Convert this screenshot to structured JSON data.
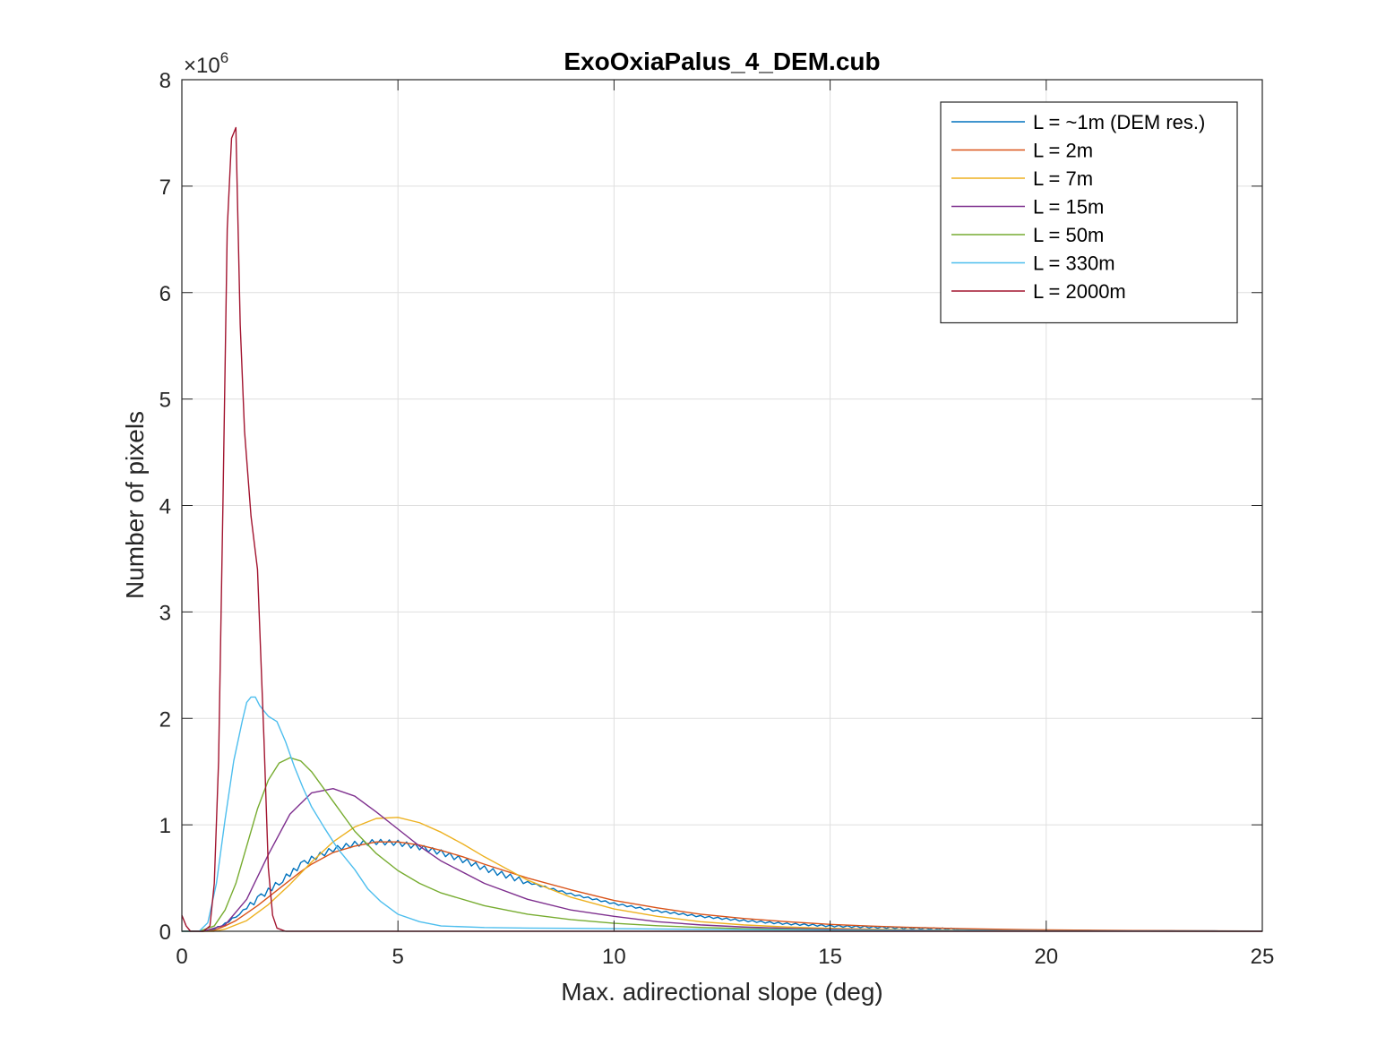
{
  "chart_data": {
    "type": "line",
    "title": "ExoOxiaPalus_4_DEM.cub",
    "xlabel": "Max. adirectional slope (deg)",
    "ylabel": "Number of pixels",
    "y_exponent_label": "×10",
    "y_exponent_power": "6",
    "xlim": [
      0,
      25
    ],
    "ylim": [
      0,
      8
    ],
    "y_scale_factor": 1000000,
    "xticks": [
      0,
      5,
      10,
      15,
      20,
      25
    ],
    "yticks": [
      0,
      1,
      2,
      3,
      4,
      5,
      6,
      7,
      8
    ],
    "xtick_labels": [
      "0",
      "5",
      "10",
      "15",
      "20",
      "25"
    ],
    "ytick_labels": [
      "0",
      "1",
      "2",
      "3",
      "4",
      "5",
      "6",
      "7",
      "8"
    ],
    "grid": true,
    "legend_position": "top-right",
    "series": [
      {
        "name": "L = ~1m (DEM res.)",
        "color": "#0072BD",
        "noise": true,
        "x": [
          0,
          0.5,
          0.75,
          1.0,
          1.25,
          1.5,
          1.75,
          2.0,
          2.25,
          2.5,
          2.75,
          3.0,
          3.5,
          4.0,
          4.5,
          5.0,
          5.5,
          6.0,
          6.5,
          7.0,
          8.0,
          9.0,
          10.0,
          11.0,
          12.0,
          13.0,
          14.0,
          15.0,
          16.0,
          17.0,
          18.0,
          19.0,
          20.0,
          22.0,
          25.0
        ],
        "y": [
          0,
          0,
          0.02,
          0.07,
          0.14,
          0.22,
          0.3,
          0.38,
          0.46,
          0.54,
          0.62,
          0.68,
          0.77,
          0.82,
          0.84,
          0.83,
          0.79,
          0.74,
          0.67,
          0.59,
          0.46,
          0.35,
          0.26,
          0.19,
          0.14,
          0.1,
          0.07,
          0.05,
          0.038,
          0.028,
          0.02,
          0.014,
          0.01,
          0.005,
          0.002
        ]
      },
      {
        "name": "L = 2m",
        "color": "#D95319",
        "noise": false,
        "x": [
          0,
          0.5,
          0.75,
          1.0,
          1.25,
          1.5,
          1.75,
          2.0,
          2.25,
          2.5,
          2.75,
          3.0,
          3.5,
          4.0,
          4.5,
          5.0,
          5.5,
          6.0,
          6.5,
          7.0,
          8.0,
          9.0,
          10.0,
          11.0,
          12.0,
          13.0,
          14.0,
          15.0,
          16.0,
          17.0,
          18.0,
          19.0,
          20.0,
          22.0,
          25.0
        ],
        "y": [
          0,
          0,
          0.01,
          0.05,
          0.1,
          0.17,
          0.24,
          0.32,
          0.4,
          0.48,
          0.56,
          0.63,
          0.74,
          0.8,
          0.84,
          0.84,
          0.81,
          0.76,
          0.7,
          0.63,
          0.5,
          0.39,
          0.29,
          0.22,
          0.16,
          0.12,
          0.09,
          0.065,
          0.048,
          0.035,
          0.025,
          0.018,
          0.013,
          0.007,
          0.002
        ]
      },
      {
        "name": "L = 7m",
        "color": "#EDB120",
        "noise": false,
        "x": [
          0,
          0.75,
          1.0,
          1.5,
          2.0,
          2.5,
          3.0,
          3.5,
          4.0,
          4.5,
          5.0,
          5.5,
          6.0,
          6.5,
          7.0,
          8.0,
          9.0,
          10.0,
          11.0,
          12.0,
          13.0,
          14.0,
          15.0,
          16.0,
          17.0,
          18.0,
          20.0,
          22.0,
          25.0
        ],
        "y": [
          0,
          0,
          0.02,
          0.1,
          0.25,
          0.44,
          0.65,
          0.84,
          0.98,
          1.06,
          1.07,
          1.02,
          0.93,
          0.82,
          0.7,
          0.48,
          0.32,
          0.21,
          0.14,
          0.09,
          0.06,
          0.04,
          0.028,
          0.019,
          0.013,
          0.009,
          0.004,
          0.002,
          0.0005
        ]
      },
      {
        "name": "L = 15m",
        "color": "#7E2F8E",
        "noise": false,
        "x": [
          0,
          0.5,
          1.0,
          1.5,
          2.0,
          2.5,
          3.0,
          3.5,
          4.0,
          4.5,
          5.0,
          5.5,
          6.0,
          7.0,
          8.0,
          9.0,
          10.0,
          11.0,
          12.0,
          13.0,
          14.0,
          15.0,
          16.0,
          18.0,
          20.0,
          25.0
        ],
        "y": [
          0,
          0,
          0.06,
          0.3,
          0.72,
          1.1,
          1.3,
          1.34,
          1.27,
          1.12,
          0.96,
          0.8,
          0.66,
          0.45,
          0.3,
          0.2,
          0.14,
          0.09,
          0.06,
          0.04,
          0.028,
          0.019,
          0.013,
          0.006,
          0.003,
          0.0005
        ]
      },
      {
        "name": "L = 50m",
        "color": "#77AC30",
        "noise": false,
        "x": [
          0,
          0.4,
          0.75,
          1.0,
          1.25,
          1.5,
          1.75,
          2.0,
          2.25,
          2.5,
          2.75,
          3.0,
          3.5,
          4.0,
          4.5,
          5.0,
          5.5,
          6.0,
          7.0,
          8.0,
          9.0,
          10.0,
          11.0,
          12.0,
          13.0,
          15.0,
          17.0,
          20.0,
          25.0
        ],
        "y": [
          0,
          0,
          0.05,
          0.2,
          0.45,
          0.8,
          1.15,
          1.42,
          1.58,
          1.63,
          1.6,
          1.5,
          1.22,
          0.94,
          0.73,
          0.57,
          0.45,
          0.36,
          0.24,
          0.16,
          0.11,
          0.075,
          0.052,
          0.036,
          0.025,
          0.012,
          0.006,
          0.002,
          0.0003
        ]
      },
      {
        "name": "L = 330m",
        "color": "#4DBEEE",
        "noise": false,
        "x": [
          0,
          0.4,
          0.6,
          0.8,
          1.0,
          1.2,
          1.4,
          1.5,
          1.6,
          1.7,
          1.8,
          2.0,
          2.2,
          2.4,
          2.6,
          2.8,
          3.0,
          3.3,
          3.6,
          4.0,
          4.3,
          4.6,
          5.0,
          5.5,
          6.0,
          7.0,
          8.0,
          10.0,
          12.0,
          15.0,
          20.0,
          25.0
        ],
        "y": [
          0,
          0,
          0.08,
          0.45,
          1.05,
          1.6,
          1.98,
          2.15,
          2.2,
          2.2,
          2.12,
          2.02,
          1.97,
          1.78,
          1.55,
          1.35,
          1.17,
          0.97,
          0.78,
          0.58,
          0.4,
          0.28,
          0.16,
          0.09,
          0.05,
          0.035,
          0.03,
          0.025,
          0.018,
          0.01,
          0.004,
          0.0005
        ]
      },
      {
        "name": "L = 2000m",
        "color": "#A2142F",
        "noise": false,
        "x": [
          0,
          0.1,
          0.2,
          0.5,
          0.65,
          0.75,
          0.85,
          0.95,
          1.05,
          1.15,
          1.25,
          1.35,
          1.45,
          1.6,
          1.75,
          1.9,
          2.0,
          2.1,
          2.2,
          2.4,
          3.0,
          25.0
        ],
        "y": [
          0.15,
          0.05,
          0,
          0,
          0.05,
          0.45,
          1.6,
          4.0,
          6.6,
          7.45,
          7.55,
          5.7,
          4.7,
          3.9,
          3.4,
          1.8,
          0.6,
          0.15,
          0.03,
          0,
          0,
          0
        ]
      }
    ]
  }
}
